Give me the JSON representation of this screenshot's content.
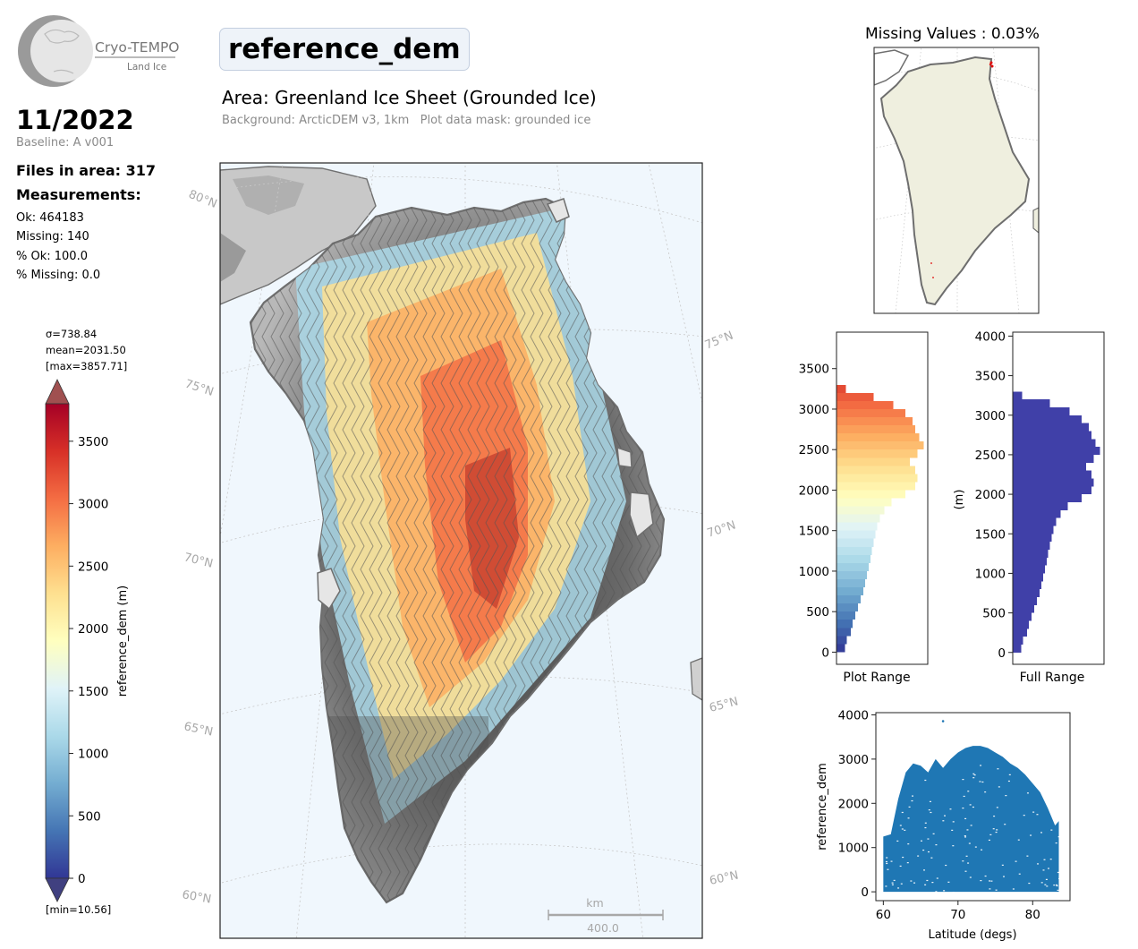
{
  "logo": {
    "name": "Cryo-TEMPO",
    "sub": "Land Ice"
  },
  "header": {
    "parameter": "reference_dem",
    "area_title": "Area: Greenland Ice Sheet (Grounded Ice)",
    "area_subtitle": "Background: ArcticDEM v3, 1km   Plot data mask: grounded ice"
  },
  "summary": {
    "date": "11/2022",
    "baseline": "Baseline: A v001",
    "files": "Files in area: 317",
    "measurements_label": "Measurements:",
    "ok": "Ok: 464183",
    "missing": "Missing: 140",
    "pct_ok": "% Ok: 100.0",
    "pct_missing": "% Missing: 0.0"
  },
  "colorbar": {
    "sigma": "σ=738.84",
    "mean": "mean=2031.50",
    "max": "[max=3857.71]",
    "min": "[min=10.56]",
    "label": "reference_dem (m)",
    "ticks": [
      "0",
      "500",
      "1000",
      "1500",
      "2000",
      "2500",
      "3000",
      "3500"
    ],
    "colors": [
      "#313695",
      "#4575b4",
      "#74add1",
      "#abd9e9",
      "#e0f3f8",
      "#ffffbf",
      "#fee090",
      "#fdae61",
      "#f46d43",
      "#d73027",
      "#a50026"
    ]
  },
  "map": {
    "lat_labels_left": [
      "80°N",
      "75°N",
      "70°N",
      "65°N",
      "60°N"
    ],
    "lat_labels_right": [
      "75°N",
      "70°N",
      "65°N",
      "60°N"
    ],
    "scalebar_unit": "km",
    "scalebar_value": "400.0"
  },
  "missing_map": {
    "title": "Missing Values : 0.03%",
    "land_color": "#efefdf"
  },
  "chart_data": [
    {
      "type": "bar",
      "orientation": "horizontal",
      "title": "",
      "xlabel": "Plot Range",
      "ylabel": "",
      "ylim": [
        -150,
        3950
      ],
      "yticks": [
        0,
        500,
        1000,
        1500,
        2000,
        2500,
        3000,
        3500
      ],
      "bins": [
        [
          0,
          0.09
        ],
        [
          100,
          0.11
        ],
        [
          200,
          0.15
        ],
        [
          300,
          0.17
        ],
        [
          400,
          0.2
        ],
        [
          500,
          0.23
        ],
        [
          600,
          0.26
        ],
        [
          700,
          0.29
        ],
        [
          800,
          0.31
        ],
        [
          900,
          0.33
        ],
        [
          1000,
          0.35
        ],
        [
          1100,
          0.37
        ],
        [
          1200,
          0.38
        ],
        [
          1300,
          0.4
        ],
        [
          1400,
          0.42
        ],
        [
          1500,
          0.44
        ],
        [
          1600,
          0.47
        ],
        [
          1700,
          0.52
        ],
        [
          1800,
          0.6
        ],
        [
          1900,
          0.75
        ],
        [
          2000,
          0.86
        ],
        [
          2100,
          0.88
        ],
        [
          2200,
          0.86
        ],
        [
          2300,
          0.8
        ],
        [
          2400,
          0.88
        ],
        [
          2500,
          0.95
        ],
        [
          2600,
          0.9
        ],
        [
          2700,
          0.86
        ],
        [
          2800,
          0.83
        ],
        [
          2900,
          0.75
        ],
        [
          3000,
          0.62
        ],
        [
          3100,
          0.4
        ],
        [
          3200,
          0.1
        ]
      ]
    },
    {
      "type": "bar",
      "orientation": "horizontal",
      "title": "",
      "xlabel": "Full Range",
      "ylabel": "(m)",
      "ylim": [
        -150,
        4050
      ],
      "yticks": [
        0,
        500,
        1000,
        1500,
        2000,
        2500,
        3000,
        3500,
        4000
      ],
      "bins": [
        [
          0,
          0.09
        ],
        [
          100,
          0.11
        ],
        [
          200,
          0.15
        ],
        [
          300,
          0.17
        ],
        [
          400,
          0.2
        ],
        [
          500,
          0.23
        ],
        [
          600,
          0.26
        ],
        [
          700,
          0.29
        ],
        [
          800,
          0.31
        ],
        [
          900,
          0.33
        ],
        [
          1000,
          0.35
        ],
        [
          1100,
          0.37
        ],
        [
          1200,
          0.38
        ],
        [
          1300,
          0.4
        ],
        [
          1400,
          0.42
        ],
        [
          1500,
          0.44
        ],
        [
          1600,
          0.47
        ],
        [
          1700,
          0.52
        ],
        [
          1800,
          0.6
        ],
        [
          1900,
          0.75
        ],
        [
          2000,
          0.86
        ],
        [
          2100,
          0.88
        ],
        [
          2200,
          0.86
        ],
        [
          2300,
          0.8
        ],
        [
          2400,
          0.88
        ],
        [
          2500,
          0.95
        ],
        [
          2600,
          0.9
        ],
        [
          2700,
          0.86
        ],
        [
          2800,
          0.83
        ],
        [
          2900,
          0.75
        ],
        [
          3000,
          0.62
        ],
        [
          3100,
          0.4
        ],
        [
          3200,
          0.1
        ]
      ],
      "color": "#4040a8"
    },
    {
      "type": "scatter",
      "title": "",
      "xlabel": "Latitude (degs)",
      "ylabel": "reference_dem",
      "xlim": [
        59,
        85
      ],
      "ylim": [
        -200,
        4050
      ],
      "xticks": [
        60,
        70,
        80
      ],
      "yticks": [
        0,
        1000,
        2000,
        3000,
        4000
      ],
      "color": "#1f77b4",
      "upper_envelope": [
        [
          60,
          1250
        ],
        [
          61,
          1300
        ],
        [
          62,
          2100
        ],
        [
          63,
          2700
        ],
        [
          64,
          2900
        ],
        [
          65,
          2850
        ],
        [
          66,
          2700
        ],
        [
          67,
          3000
        ],
        [
          68,
          2800
        ],
        [
          69,
          3000
        ],
        [
          70,
          3150
        ],
        [
          71,
          3250
        ],
        [
          72,
          3300
        ],
        [
          73,
          3300
        ],
        [
          74,
          3250
        ],
        [
          75,
          3150
        ],
        [
          76,
          3050
        ],
        [
          77,
          2900
        ],
        [
          78,
          2800
        ],
        [
          79,
          2650
        ],
        [
          80,
          2450
        ],
        [
          81,
          2250
        ],
        [
          82,
          1900
        ],
        [
          83,
          1500
        ],
        [
          83.5,
          1600
        ]
      ],
      "outliers": [
        [
          68,
          3857
        ]
      ]
    }
  ]
}
